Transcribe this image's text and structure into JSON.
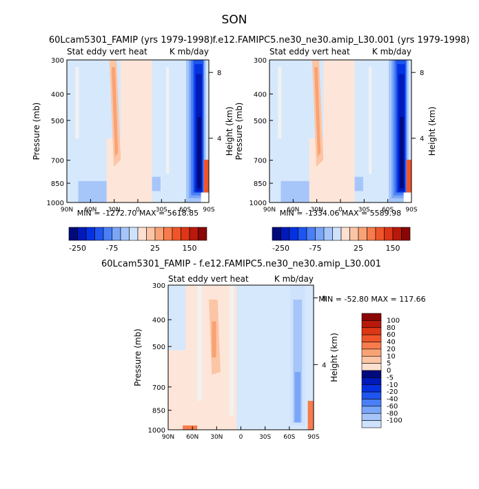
{
  "page_title": "SON",
  "colors": {
    "neg": [
      "#000a7a",
      "#0019b8",
      "#0432e0",
      "#1e55f0",
      "#4a7ff5",
      "#7aa6f7",
      "#a6c6fa",
      "#cfe2fc"
    ],
    "zero": "#f2f2f2",
    "pos": [
      "#fde0cf",
      "#fcc5a5",
      "#f9a274",
      "#f77b4c",
      "#f0552a",
      "#dd3615",
      "#b8190a",
      "#8a0505"
    ],
    "background_field_pos": "#fde6d9",
    "background_field_neg": "#d6e8fc"
  },
  "chart_data": [
    {
      "type": "heatmap",
      "title": "60Lcam5301_FAMIP (yrs 1979-1998)",
      "left_label": "Stat eddy vert heat",
      "right_label": "K mb/day",
      "xlabel": "",
      "ylabel": "Pressure (mb)",
      "y2label": "Height (km)",
      "xticks": [
        "90N",
        "60N",
        "30N",
        "0",
        "30S",
        "60S",
        "90S"
      ],
      "yticks": [
        300,
        400,
        500,
        700,
        850,
        1000
      ],
      "y2ticks": [
        8,
        4
      ],
      "ylim": [
        300,
        1000
      ],
      "stats": "MIN = -1272.70   MAX = 5618.85",
      "colorbar": {
        "orientation": "horizontal",
        "labels": [
          "-250",
          "-75",
          "25",
          "150"
        ]
      }
    },
    {
      "type": "heatmap",
      "title": "f.e12.FAMIPC5.ne30_ne30.amip_L30.001 (yrs 1979-1998)",
      "left_label": "Stat eddy vert heat",
      "right_label": "K mb/day",
      "xlabel": "",
      "ylabel": "Pressure (mb)",
      "y2label": "Height (km)",
      "xticks": [
        "90N",
        "60N",
        "30N",
        "0",
        "30S",
        "60S",
        "90S"
      ],
      "yticks": [
        300,
        400,
        500,
        700,
        850,
        1000
      ],
      "y2ticks": [
        8,
        4
      ],
      "ylim": [
        300,
        1000
      ],
      "stats": "MIN = -1334.06   MAX = 5589.98",
      "colorbar": {
        "orientation": "horizontal",
        "labels": [
          "-250",
          "-75",
          "25",
          "150"
        ]
      }
    },
    {
      "type": "heatmap",
      "title": "60Lcam5301_FAMIP - f.e12.FAMIPC5.ne30_ne30.amip_L30.001",
      "left_label": "Stat eddy vert heat",
      "right_label": "K mb/day",
      "xlabel": "",
      "ylabel": "Pressure (mb)",
      "y2label": "Height (km)",
      "xticks": [
        "90N",
        "60N",
        "30N",
        "0",
        "30S",
        "60S",
        "90S"
      ],
      "yticks": [
        300,
        400,
        500,
        700,
        850,
        1000
      ],
      "y2ticks": [
        8,
        4
      ],
      "ylim": [
        300,
        1000
      ],
      "stats": "MIN = -52.80   MAX = 117.66",
      "colorbar": {
        "orientation": "vertical",
        "labels": [
          "100",
          "80",
          "60",
          "40",
          "20",
          "10",
          "5",
          "0",
          "-5",
          "-10",
          "-20",
          "-40",
          "-60",
          "-80",
          "-100"
        ]
      }
    }
  ]
}
